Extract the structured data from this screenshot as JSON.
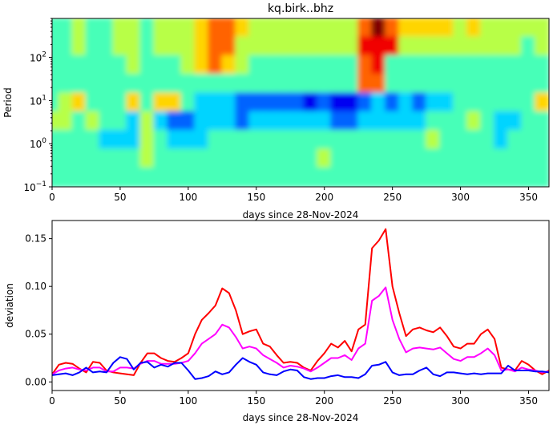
{
  "chart_data": [
    {
      "type": "heatmap",
      "title": "kq.birk..bhz",
      "xlabel": "days since 28-Nov-2024",
      "ylabel": "Period",
      "xlim": [
        0,
        365
      ],
      "ylim": [
        0.1,
        800
      ],
      "yscale": "log",
      "colormap": "jet",
      "xticks": [
        "0",
        "50",
        "100",
        "150",
        "200",
        "250",
        "300",
        "350"
      ],
      "yticks": [
        {
          "base": "10",
          "exp": "−1"
        },
        {
          "base": "10",
          "exp": "0"
        },
        {
          "base": "10",
          "exp": "1"
        },
        {
          "base": "10",
          "exp": "2"
        }
      ],
      "x_days": [
        0,
        10,
        20,
        30,
        40,
        50,
        60,
        70,
        80,
        90,
        100,
        110,
        120,
        130,
        140,
        150,
        160,
        170,
        180,
        190,
        200,
        210,
        220,
        230,
        240,
        250,
        260,
        270,
        280,
        290,
        300,
        310,
        320,
        330,
        340,
        350,
        360
      ],
      "period_rows": [
        500,
        200,
        60,
        20,
        8,
        3,
        1,
        0.3,
        0.13
      ],
      "level_scale_0_to_9": [
        "4454455455567765555555579766665655555",
        "4454455455567755555555588855555555545",
        "4444445444567654444444478444444444444",
        "4444444444444444444444477444444444444",
        "4564446466433322222121123232334444446",
        "5545443532233323333332233333444543344",
        "4444333543334444444444444444544443444",
        "4444444544444444444454444444444444444",
        "4444444444444444444444444444444444444"
      ]
    },
    {
      "type": "line",
      "xlabel": "days since 28-Nov-2024",
      "ylabel": "deviation",
      "xlim": [
        0,
        365
      ],
      "ylim": [
        -0.009,
        0.169
      ],
      "xticks": [
        "0",
        "50",
        "100",
        "150",
        "200",
        "250",
        "300",
        "350"
      ],
      "yticks": [
        "0.00",
        "0.05",
        "0.10",
        "0.15"
      ],
      "x": [
        0,
        5,
        10,
        15,
        20,
        25,
        30,
        35,
        40,
        45,
        50,
        55,
        60,
        65,
        70,
        75,
        80,
        85,
        90,
        95,
        100,
        105,
        110,
        115,
        120,
        125,
        130,
        135,
        140,
        145,
        150,
        155,
        160,
        165,
        170,
        175,
        180,
        185,
        190,
        195,
        200,
        205,
        210,
        215,
        220,
        225,
        230,
        235,
        240,
        245,
        250,
        255,
        260,
        265,
        270,
        275,
        280,
        285,
        290,
        295,
        300,
        305,
        310,
        315,
        320,
        325,
        330,
        335,
        340,
        345,
        350,
        355,
        360,
        365
      ],
      "series": [
        {
          "color": "#ff0000",
          "values": [
            0.008,
            0.018,
            0.02,
            0.019,
            0.014,
            0.01,
            0.021,
            0.02,
            0.012,
            0.01,
            0.009,
            0.008,
            0.007,
            0.02,
            0.03,
            0.03,
            0.025,
            0.022,
            0.021,
            0.025,
            0.03,
            0.05,
            0.065,
            0.072,
            0.08,
            0.098,
            0.093,
            0.075,
            0.05,
            0.053,
            0.055,
            0.04,
            0.037,
            0.028,
            0.02,
            0.021,
            0.02,
            0.015,
            0.012,
            0.022,
            0.03,
            0.04,
            0.036,
            0.043,
            0.032,
            0.055,
            0.06,
            0.14,
            0.148,
            0.16,
            0.1,
            0.072,
            0.048,
            0.055,
            0.057,
            0.054,
            0.052,
            0.057,
            0.048,
            0.037,
            0.035,
            0.04,
            0.04,
            0.05,
            0.055,
            0.045,
            0.015,
            0.013,
            0.012,
            0.022,
            0.018,
            0.012,
            0.008,
            0.012
          ]
        },
        {
          "color": "#ff00ff",
          "values": [
            0.008,
            0.012,
            0.014,
            0.015,
            0.013,
            0.012,
            0.015,
            0.015,
            0.011,
            0.011,
            0.015,
            0.015,
            0.014,
            0.019,
            0.022,
            0.022,
            0.019,
            0.019,
            0.019,
            0.02,
            0.022,
            0.03,
            0.04,
            0.045,
            0.05,
            0.06,
            0.057,
            0.047,
            0.035,
            0.037,
            0.035,
            0.028,
            0.024,
            0.02,
            0.015,
            0.017,
            0.016,
            0.014,
            0.011,
            0.015,
            0.02,
            0.025,
            0.025,
            0.028,
            0.023,
            0.035,
            0.04,
            0.085,
            0.09,
            0.099,
            0.065,
            0.045,
            0.031,
            0.035,
            0.036,
            0.035,
            0.034,
            0.036,
            0.03,
            0.024,
            0.022,
            0.026,
            0.026,
            0.03,
            0.035,
            0.028,
            0.012,
            0.013,
            0.011,
            0.015,
            0.013,
            0.012,
            0.01,
            0.011
          ]
        },
        {
          "color": "#0000ff",
          "values": [
            0.007,
            0.008,
            0.009,
            0.007,
            0.01,
            0.015,
            0.01,
            0.011,
            0.01,
            0.02,
            0.026,
            0.024,
            0.013,
            0.02,
            0.021,
            0.015,
            0.018,
            0.016,
            0.02,
            0.02,
            0.012,
            0.003,
            0.004,
            0.006,
            0.011,
            0.008,
            0.01,
            0.018,
            0.025,
            0.021,
            0.018,
            0.01,
            0.008,
            0.007,
            0.011,
            0.013,
            0.012,
            0.005,
            0.003,
            0.004,
            0.004,
            0.006,
            0.007,
            0.005,
            0.005,
            0.004,
            0.008,
            0.017,
            0.018,
            0.021,
            0.01,
            0.007,
            0.008,
            0.008,
            0.012,
            0.015,
            0.008,
            0.006,
            0.01,
            0.01,
            0.009,
            0.008,
            0.009,
            0.008,
            0.009,
            0.009,
            0.009,
            0.017,
            0.012,
            0.012,
            0.012,
            0.011,
            0.011,
            0.01
          ]
        }
      ]
    }
  ]
}
